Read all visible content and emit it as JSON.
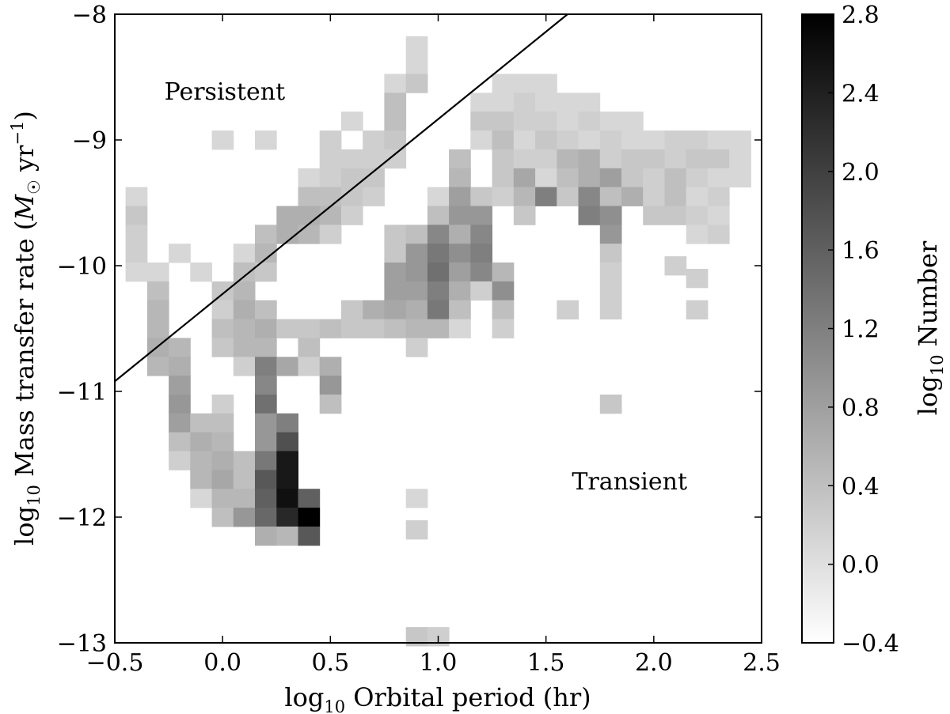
{
  "chart_data": {
    "type": "heatmap",
    "title": "",
    "xlabel": {
      "prefix": "log",
      "sub": "10",
      "text": " Orbital period (hr)"
    },
    "ylabel": {
      "prefix": "log",
      "sub": "10",
      "text": " Mass transfer rate (",
      "italic": "M",
      "sun": "☉",
      "unit": " yr",
      "sup": "−1",
      "close": ")"
    },
    "xlim": [
      -0.5,
      2.5
    ],
    "ylim": [
      -13,
      -8
    ],
    "xticks": [
      -0.5,
      0.0,
      0.5,
      1.0,
      1.5,
      2.0,
      2.5
    ],
    "xtick_labels": [
      "−0.5",
      "0.0",
      "0.5",
      "1.0",
      "1.5",
      "2.0",
      "2.5"
    ],
    "yticks": [
      -13,
      -12,
      -11,
      -10,
      -9,
      -8
    ],
    "ytick_labels": [
      "−13",
      "−12",
      "−11",
      "−10",
      "−9",
      "−8"
    ],
    "bin_width_x": 0.1,
    "bin_height_y": 0.15,
    "cells": [
      [
        -0.4,
        -9.45,
        0.1
      ],
      [
        -0.4,
        -9.6,
        0.3
      ],
      [
        -0.4,
        -9.75,
        0.2
      ],
      [
        -0.4,
        -9.9,
        0.2
      ],
      [
        -0.4,
        -10.05,
        0.1
      ],
      [
        -0.3,
        -10.05,
        0.1
      ],
      [
        -0.3,
        -10.2,
        0.4
      ],
      [
        -0.3,
        -10.35,
        0.5
      ],
      [
        -0.3,
        -10.5,
        0.5
      ],
      [
        -0.3,
        -10.65,
        0.6
      ],
      [
        -0.3,
        -10.8,
        0.5
      ],
      [
        -0.2,
        -9.9,
        0.1
      ],
      [
        -0.2,
        -10.65,
        0.5
      ],
      [
        -0.2,
        -10.8,
        0.6
      ],
      [
        -0.2,
        -10.95,
        0.8
      ],
      [
        -0.2,
        -11.1,
        0.9
      ],
      [
        -0.2,
        -11.25,
        0.8
      ],
      [
        -0.2,
        -11.4,
        0.4
      ],
      [
        -0.2,
        -11.55,
        0.2
      ],
      [
        -0.1,
        -10.05,
        0.1
      ],
      [
        -0.1,
        -11.25,
        0.4
      ],
      [
        -0.1,
        -11.4,
        0.6
      ],
      [
        -0.1,
        -11.55,
        0.5
      ],
      [
        -0.1,
        -11.7,
        0.5
      ],
      [
        -0.1,
        -11.85,
        0.1
      ],
      [
        0.0,
        -9.0,
        0.1
      ],
      [
        0.0,
        -10.2,
        0.3
      ],
      [
        0.0,
        -10.35,
        0.2
      ],
      [
        0.0,
        -10.5,
        0.4
      ],
      [
        0.0,
        -10.65,
        0.3
      ],
      [
        0.0,
        -11.1,
        0.2
      ],
      [
        0.0,
        -11.25,
        0.4
      ],
      [
        0.0,
        -11.4,
        0.5
      ],
      [
        0.0,
        -11.55,
        0.6
      ],
      [
        0.0,
        -11.7,
        0.7
      ],
      [
        0.0,
        -11.85,
        0.5
      ],
      [
        0.0,
        -12.0,
        0.4
      ],
      [
        0.1,
        -9.9,
        0.1
      ],
      [
        0.1,
        -10.05,
        0.4
      ],
      [
        0.1,
        -10.2,
        0.5
      ],
      [
        0.1,
        -10.35,
        0.6
      ],
      [
        0.1,
        -10.5,
        0.5
      ],
      [
        0.1,
        -10.65,
        0.5
      ],
      [
        0.1,
        -10.8,
        0.2
      ],
      [
        0.1,
        -11.55,
        0.4
      ],
      [
        0.1,
        -11.7,
        0.4
      ],
      [
        0.1,
        -11.85,
        0.5
      ],
      [
        0.1,
        -12.0,
        0.9
      ],
      [
        0.2,
        -9.0,
        0.1
      ],
      [
        0.2,
        -9.75,
        0.4
      ],
      [
        0.2,
        -9.9,
        0.5
      ],
      [
        0.2,
        -10.05,
        0.3
      ],
      [
        0.2,
        -10.35,
        0.4
      ],
      [
        0.2,
        -10.5,
        0.6
      ],
      [
        0.2,
        -10.65,
        0.5
      ],
      [
        0.2,
        -10.8,
        1.2
      ],
      [
        0.2,
        -10.95,
        1.1
      ],
      [
        0.2,
        -11.1,
        1.4
      ],
      [
        0.2,
        -11.25,
        0.9
      ],
      [
        0.2,
        -11.4,
        0.9
      ],
      [
        0.2,
        -11.55,
        1.3
      ],
      [
        0.2,
        -11.7,
        1.7
      ],
      [
        0.2,
        -11.85,
        1.6
      ],
      [
        0.2,
        -12.0,
        1.5
      ],
      [
        0.2,
        -12.15,
        0.6
      ],
      [
        0.3,
        -9.6,
        0.6
      ],
      [
        0.3,
        -9.75,
        0.6
      ],
      [
        0.3,
        -10.5,
        0.3
      ],
      [
        0.3,
        -10.8,
        0.7
      ],
      [
        0.3,
        -11.25,
        1.2
      ],
      [
        0.3,
        -11.4,
        1.8
      ],
      [
        0.3,
        -11.55,
        2.5
      ],
      [
        0.3,
        -11.7,
        2.5
      ],
      [
        0.3,
        -11.85,
        2.6
      ],
      [
        0.3,
        -12.0,
        2.3
      ],
      [
        0.3,
        -12.15,
        0.5
      ],
      [
        0.4,
        -9.3,
        0.1
      ],
      [
        0.4,
        -9.45,
        0.4
      ],
      [
        0.4,
        -9.6,
        0.6
      ],
      [
        0.4,
        -9.75,
        0.5
      ],
      [
        0.4,
        -10.5,
        0.3
      ],
      [
        0.4,
        -10.65,
        0.4
      ],
      [
        0.4,
        -10.8,
        0.2
      ],
      [
        0.4,
        -11.85,
        1.6
      ],
      [
        0.4,
        -12.0,
        2.8
      ],
      [
        0.4,
        -12.15,
        1.7
      ],
      [
        0.5,
        -9.0,
        0.2
      ],
      [
        0.5,
        -9.15,
        0.2
      ],
      [
        0.5,
        -9.3,
        0.2
      ],
      [
        0.5,
        -9.45,
        0.4
      ],
      [
        0.5,
        -9.6,
        0.5
      ],
      [
        0.5,
        -9.75,
        0.2
      ],
      [
        0.5,
        -10.5,
        0.4
      ],
      [
        0.5,
        -10.8,
        0.6
      ],
      [
        0.5,
        -10.95,
        0.9
      ],
      [
        0.5,
        -11.1,
        0.4
      ],
      [
        0.6,
        -8.85,
        0.1
      ],
      [
        0.6,
        -9.15,
        0.2
      ],
      [
        0.6,
        -9.3,
        0.3
      ],
      [
        0.6,
        -9.45,
        0.3
      ],
      [
        0.6,
        -9.6,
        0.2
      ],
      [
        0.6,
        -10.35,
        0.3
      ],
      [
        0.6,
        -10.5,
        0.3
      ],
      [
        0.7,
        -9.0,
        0.2
      ],
      [
        0.7,
        -9.15,
        0.2
      ],
      [
        0.7,
        -9.3,
        0.3
      ],
      [
        0.7,
        -9.45,
        0.2
      ],
      [
        0.7,
        -10.35,
        0.6
      ],
      [
        0.7,
        -10.5,
        0.3
      ],
      [
        0.8,
        -8.55,
        0.1
      ],
      [
        0.8,
        -8.7,
        0.4
      ],
      [
        0.8,
        -8.85,
        0.4
      ],
      [
        0.8,
        -9.0,
        0.3
      ],
      [
        0.8,
        -9.15,
        0.2
      ],
      [
        0.8,
        -9.75,
        0.3
      ],
      [
        0.8,
        -9.9,
        0.3
      ],
      [
        0.8,
        -10.05,
        0.8
      ],
      [
        0.8,
        -10.2,
        0.8
      ],
      [
        0.8,
        -10.35,
        0.7
      ],
      [
        0.8,
        -10.5,
        0.4
      ],
      [
        0.9,
        -8.25,
        0.1
      ],
      [
        0.9,
        -8.4,
        0.1
      ],
      [
        0.9,
        -8.55,
        0.3
      ],
      [
        0.9,
        -9.75,
        0.4
      ],
      [
        0.9,
        -9.9,
        0.9
      ],
      [
        0.9,
        -10.05,
        0.9
      ],
      [
        0.9,
        -10.2,
        0.8
      ],
      [
        0.9,
        -10.35,
        0.6
      ],
      [
        0.9,
        -10.5,
        0.5
      ],
      [
        0.9,
        -10.65,
        0.2
      ],
      [
        0.9,
        -11.85,
        0.1
      ],
      [
        0.9,
        -12.1,
        0.2
      ],
      [
        0.9,
        -12.95,
        0.3
      ],
      [
        1.0,
        -9.45,
        0.1
      ],
      [
        1.0,
        -9.6,
        0.4
      ],
      [
        1.0,
        -9.75,
        1.1
      ],
      [
        1.0,
        -9.9,
        1.3
      ],
      [
        1.0,
        -10.05,
        1.4
      ],
      [
        1.0,
        -10.2,
        1.2
      ],
      [
        1.0,
        -10.35,
        1.3
      ],
      [
        1.0,
        -10.5,
        0.5
      ],
      [
        1.0,
        -12.95,
        0.2
      ],
      [
        1.1,
        -9.15,
        0.4
      ],
      [
        1.1,
        -9.3,
        0.5
      ],
      [
        1.1,
        -9.45,
        0.8
      ],
      [
        1.1,
        -9.6,
        0.9
      ],
      [
        1.1,
        -9.75,
        0.6
      ],
      [
        1.1,
        -9.9,
        1.0
      ],
      [
        1.1,
        -10.05,
        0.8
      ],
      [
        1.1,
        -10.2,
        0.6
      ],
      [
        1.1,
        -10.35,
        0.4
      ],
      [
        1.1,
        -10.5,
        0.1
      ],
      [
        1.2,
        -8.7,
        0.1
      ],
      [
        1.2,
        -8.85,
        0.3
      ],
      [
        1.2,
        -9.0,
        0.1
      ],
      [
        1.2,
        -9.45,
        0.3
      ],
      [
        1.2,
        -9.6,
        0.9
      ],
      [
        1.2,
        -9.75,
        1.1
      ],
      [
        1.2,
        -9.9,
        1.2
      ],
      [
        1.2,
        -10.05,
        1.1
      ],
      [
        1.2,
        -10.2,
        0.2
      ],
      [
        1.3,
        -8.55,
        0.1
      ],
      [
        1.3,
        -8.7,
        0.1
      ],
      [
        1.3,
        -8.85,
        0.3
      ],
      [
        1.3,
        -9.0,
        0.4
      ],
      [
        1.3,
        -9.15,
        0.3
      ],
      [
        1.3,
        -9.3,
        0.3
      ],
      [
        1.3,
        -9.45,
        0.2
      ],
      [
        1.3,
        -10.05,
        0.5
      ],
      [
        1.3,
        -10.2,
        1.0
      ],
      [
        1.3,
        -10.35,
        0.4
      ],
      [
        1.3,
        -10.5,
        0.2
      ],
      [
        1.4,
        -8.55,
        0.1
      ],
      [
        1.4,
        -8.7,
        0.2
      ],
      [
        1.4,
        -8.85,
        0.2
      ],
      [
        1.4,
        -9.0,
        0.1
      ],
      [
        1.4,
        -9.15,
        0.2
      ],
      [
        1.4,
        -9.3,
        0.7
      ],
      [
        1.4,
        -9.45,
        0.5
      ],
      [
        1.4,
        -9.6,
        0.3
      ],
      [
        1.5,
        -8.55,
        0.1
      ],
      [
        1.5,
        -8.7,
        0.1
      ],
      [
        1.5,
        -8.85,
        0.2
      ],
      [
        1.5,
        -9.0,
        0.3
      ],
      [
        1.5,
        -9.15,
        0.2
      ],
      [
        1.5,
        -9.3,
        0.1
      ],
      [
        1.5,
        -9.45,
        1.2
      ],
      [
        1.6,
        -8.7,
        0.1
      ],
      [
        1.6,
        -8.85,
        0.1
      ],
      [
        1.6,
        -9.0,
        0.2
      ],
      [
        1.6,
        -9.15,
        0.5
      ],
      [
        1.6,
        -9.3,
        0.4
      ],
      [
        1.6,
        -9.45,
        0.3
      ],
      [
        1.6,
        -10.35,
        0.2
      ],
      [
        1.7,
        -8.7,
        0.1
      ],
      [
        1.7,
        -8.85,
        0.2
      ],
      [
        1.7,
        -9.0,
        0.1
      ],
      [
        1.7,
        -9.15,
        0.6
      ],
      [
        1.7,
        -9.3,
        0.6
      ],
      [
        1.7,
        -9.45,
        1.1
      ],
      [
        1.7,
        -9.6,
        1.2
      ],
      [
        1.8,
        -8.85,
        0.1
      ],
      [
        1.8,
        -9.0,
        0.2
      ],
      [
        1.8,
        -9.15,
        0.2
      ],
      [
        1.8,
        -9.3,
        0.8
      ],
      [
        1.8,
        -9.45,
        0.4
      ],
      [
        1.8,
        -9.6,
        1.0
      ],
      [
        1.8,
        -9.75,
        0.9
      ],
      [
        1.8,
        -9.9,
        0.3
      ],
      [
        1.8,
        -10.05,
        0.2
      ],
      [
        1.8,
        -10.2,
        0.2
      ],
      [
        1.8,
        -10.35,
        0.2
      ],
      [
        1.8,
        -11.1,
        0.3
      ],
      [
        1.9,
        -8.85,
        0.1
      ],
      [
        1.9,
        -9.0,
        0.1
      ],
      [
        1.9,
        -9.15,
        0.3
      ],
      [
        1.9,
        -9.3,
        0.3
      ],
      [
        1.9,
        -9.45,
        0.6
      ],
      [
        2.0,
        -9.0,
        0.1
      ],
      [
        2.0,
        -9.15,
        0.3
      ],
      [
        2.0,
        -9.3,
        0.2
      ],
      [
        2.0,
        -9.45,
        0.2
      ],
      [
        2.0,
        -9.6,
        0.3
      ],
      [
        2.1,
        -9.0,
        0.2
      ],
      [
        2.1,
        -9.15,
        0.2
      ],
      [
        2.1,
        -9.3,
        0.4
      ],
      [
        2.1,
        -9.45,
        0.4
      ],
      [
        2.1,
        -9.6,
        0.3
      ],
      [
        2.1,
        -10.0,
        0.2
      ],
      [
        2.2,
        -9.0,
        0.2
      ],
      [
        2.2,
        -9.15,
        0.3
      ],
      [
        2.2,
        -9.3,
        0.2
      ],
      [
        2.2,
        -9.45,
        0.1
      ],
      [
        2.2,
        -9.6,
        0.2
      ],
      [
        2.2,
        -9.75,
        0.1
      ],
      [
        2.2,
        -10.1,
        0.2
      ],
      [
        2.2,
        -10.35,
        0.2
      ],
      [
        2.3,
        -9.0,
        0.1
      ],
      [
        2.3,
        -9.15,
        0.3
      ],
      [
        2.3,
        -9.3,
        0.1
      ],
      [
        2.3,
        -9.45,
        0.2
      ],
      [
        2.3,
        -9.6,
        0.1
      ],
      [
        2.3,
        -9.75,
        0.2
      ],
      [
        2.4,
        -9.0,
        0.1
      ],
      [
        2.4,
        -9.15,
        0.1
      ],
      [
        2.4,
        -9.3,
        0.1
      ]
    ],
    "boundary_line": {
      "x": [
        -0.5,
        1.6
      ],
      "y": [
        -10.92,
        -8.0
      ]
    },
    "annotations": [
      {
        "text": "Persistent",
        "x": -0.27,
        "y": -8.68
      },
      {
        "text": "Transient",
        "x": 1.62,
        "y": -11.78
      }
    ],
    "colorbar": {
      "range": [
        -0.4,
        2.8
      ],
      "ticks": [
        -0.4,
        0.0,
        0.4,
        0.8,
        1.2,
        1.6,
        2.0,
        2.4,
        2.8
      ],
      "tick_labels": [
        "−0.4",
        "0.0",
        "0.4",
        "0.8",
        "1.2",
        "1.6",
        "2.0",
        "2.4",
        "2.8"
      ],
      "label": {
        "prefix": "log",
        "sub": "10",
        "text": " Number"
      },
      "colormap": "gray_r"
    },
    "grid": false
  }
}
